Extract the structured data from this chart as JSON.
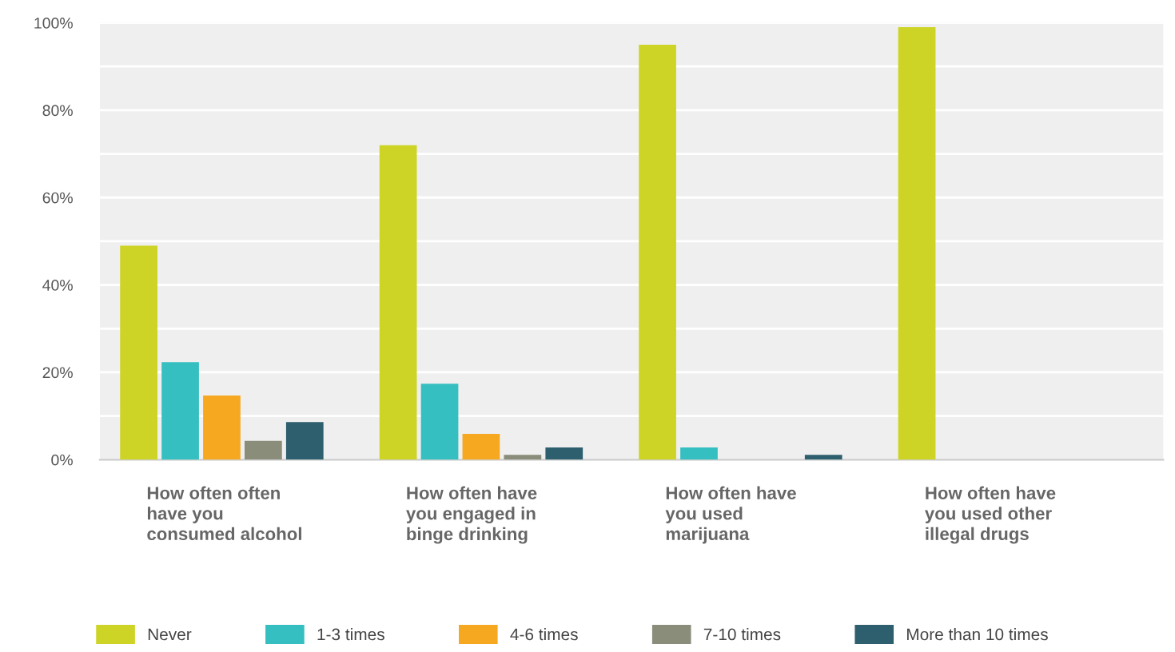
{
  "chart_data": {
    "type": "bar",
    "categories": [
      "How often often\nhave you\nconsumed alcohol",
      "How often have\nyou engaged in\nbinge drinking",
      "How often have\nyou used\nmarijuana",
      "How often have\nyou used other\nillegal drugs"
    ],
    "series": [
      {
        "name": "Never",
        "color": "#cdd425",
        "values": [
          49,
          72,
          95,
          99
        ]
      },
      {
        "name": "1-3 times",
        "color": "#35bfc0",
        "values": [
          22.3,
          17.4,
          2.8,
          0
        ]
      },
      {
        "name": "4-6 times",
        "color": "#f6a821",
        "values": [
          14.7,
          5.9,
          0,
          0
        ]
      },
      {
        "name": "7-10 times",
        "color": "#8a8d7a",
        "values": [
          4.3,
          1.1,
          0,
          0
        ]
      },
      {
        "name": "More than 10 times",
        "color": "#2e5f6e",
        "values": [
          8.6,
          2.8,
          1.1,
          0
        ]
      }
    ],
    "ylim": [
      0,
      100
    ],
    "yticks": [
      {
        "value": 0,
        "label": "0%"
      },
      {
        "value": 10,
        "label": null
      },
      {
        "value": 20,
        "label": "20%"
      },
      {
        "value": 30,
        "label": null
      },
      {
        "value": 40,
        "label": "40%"
      },
      {
        "value": 50,
        "label": null
      },
      {
        "value": 60,
        "label": "60%"
      },
      {
        "value": 70,
        "label": null
      },
      {
        "value": 80,
        "label": "80%"
      },
      {
        "value": 90,
        "label": null
      },
      {
        "value": 100,
        "label": "100%"
      }
    ],
    "grid": "y",
    "legend": "bottom"
  }
}
